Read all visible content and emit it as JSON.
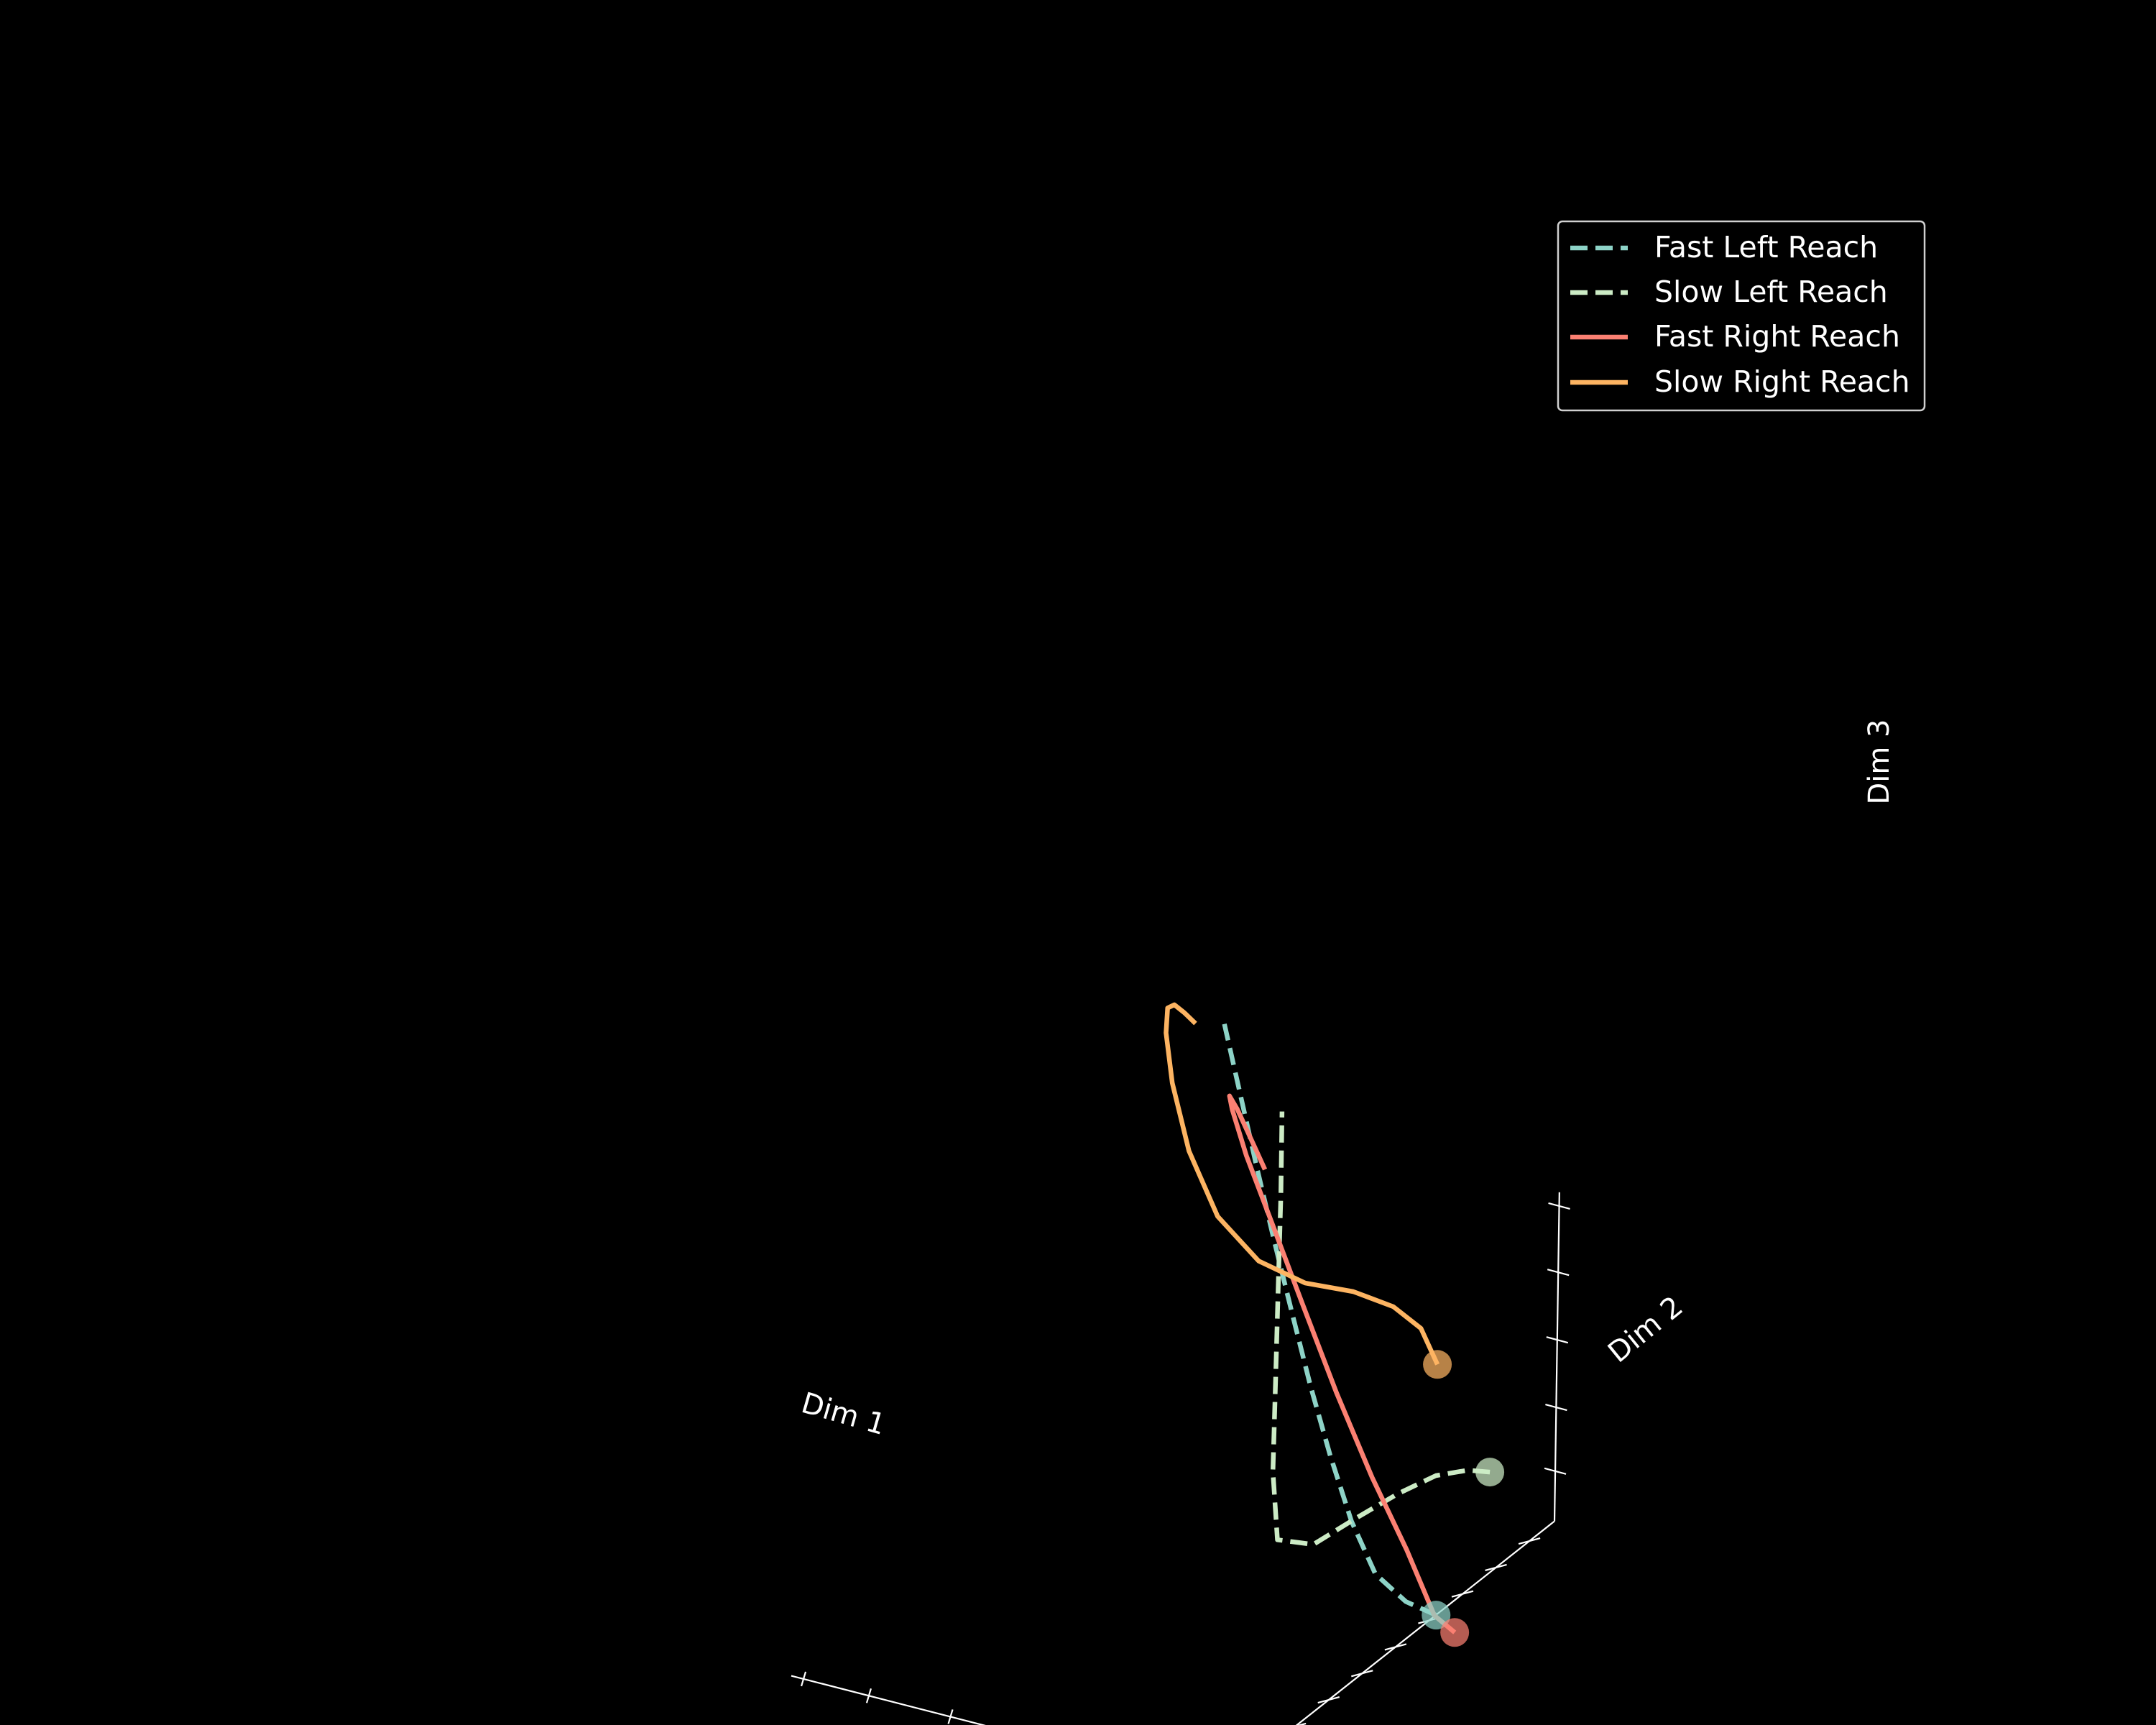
{
  "chart_data": {
    "type": "line",
    "projection": "3d",
    "title": "",
    "xlabel": "Dim 1",
    "ylabel": "Dim 2",
    "zlabel": "Dim 3",
    "tick_labels_shown": false,
    "grid": false,
    "background": "#000000",
    "legend_position": "top-right",
    "series": [
      {
        "name": "Fast Left Reach",
        "color": "#8dd3c7",
        "dashed": true,
        "start_marker": true,
        "points": [
          [
            -0.27,
            2.0,
            -2.15
          ],
          [
            -0.12,
            1.67,
            -1.95
          ],
          [
            0.02,
            1.32,
            -1.63
          ],
          [
            0.12,
            1.02,
            -1.12
          ],
          [
            0.19,
            0.72,
            -0.5
          ],
          [
            0.24,
            0.42,
            0.15
          ],
          [
            0.28,
            0.12,
            0.84
          ],
          [
            0.31,
            -0.18,
            1.52
          ],
          [
            0.33,
            -0.48,
            2.2
          ],
          [
            0.34,
            -0.78,
            2.88
          ],
          [
            0.35,
            -1.08,
            3.56
          ]
        ]
      },
      {
        "name": "Slow Left Reach",
        "color": "#ccebc5",
        "dashed": true,
        "start_marker": true,
        "points": [
          [
            -0.9,
            2.0,
            -0.9
          ],
          [
            -0.82,
            1.72,
            -0.8
          ],
          [
            -0.66,
            1.38,
            -0.75
          ],
          [
            -0.45,
            1.02,
            -0.8
          ],
          [
            -0.2,
            0.62,
            -0.9
          ],
          [
            0.03,
            0.2,
            -1.0
          ],
          [
            0.2,
            -0.2,
            -0.85
          ],
          [
            0.1,
            -0.45,
            -0.2
          ],
          [
            -0.05,
            -0.65,
            0.6
          ],
          [
            -0.2,
            -0.85,
            1.45
          ],
          [
            -0.35,
            -1.05,
            2.3
          ],
          [
            -0.47,
            -1.23,
            3.05
          ]
        ]
      },
      {
        "name": "Fast Right Reach",
        "color": "#fb8072",
        "dashed": false,
        "start_marker": true,
        "points": [
          [
            -0.5,
            2.0,
            -2.25
          ],
          [
            -0.33,
            1.88,
            -2.1
          ],
          [
            -0.1,
            1.7,
            -1.55
          ],
          [
            0.2,
            1.5,
            -0.95
          ],
          [
            0.5,
            1.28,
            -0.25
          ],
          [
            0.78,
            1.05,
            0.5
          ],
          [
            1.0,
            0.8,
            1.2
          ],
          [
            1.12,
            0.5,
            1.82
          ],
          [
            1.1,
            0.2,
            2.3
          ],
          [
            0.92,
            -0.12,
            2.55
          ],
          [
            0.62,
            -0.42,
            2.6
          ],
          [
            0.28,
            -0.68,
            2.52
          ],
          [
            -0.05,
            -0.9,
            2.4
          ]
        ]
      },
      {
        "name": "Slow Right Reach",
        "color": "#fdb462",
        "dashed": false,
        "start_marker": true,
        "points": [
          [
            -0.24,
            2.0,
            -0.15
          ],
          [
            -0.1,
            1.9,
            0.15
          ],
          [
            0.12,
            1.72,
            0.35
          ],
          [
            0.45,
            1.48,
            0.5
          ],
          [
            0.85,
            1.2,
            0.6
          ],
          [
            1.22,
            0.9,
            0.82
          ],
          [
            1.5,
            0.56,
            1.25
          ],
          [
            1.62,
            0.2,
            1.88
          ],
          [
            1.6,
            -0.15,
            2.55
          ],
          [
            1.45,
            -0.5,
            3.1
          ],
          [
            1.22,
            -0.82,
            3.45
          ],
          [
            0.95,
            -1.1,
            3.62
          ],
          [
            0.68,
            -1.32,
            3.68
          ],
          [
            0.42,
            -1.5,
            3.7
          ]
        ]
      }
    ],
    "legend": [
      {
        "label": "Fast Left Reach"
      },
      {
        "label": "Slow Left Reach"
      },
      {
        "label": "Fast Right Reach"
      },
      {
        "label": "Slow Right Reach"
      }
    ]
  }
}
